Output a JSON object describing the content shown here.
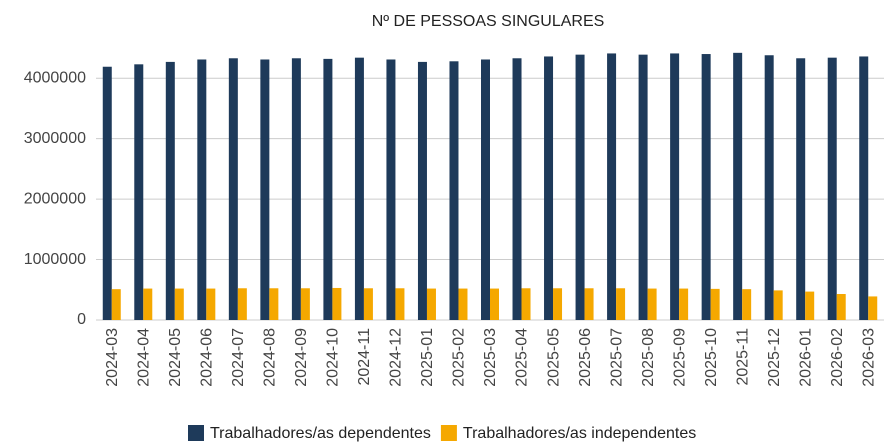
{
  "chart_data": {
    "type": "bar",
    "title": "Nº DE PESSOAS SINGULARES",
    "categories": [
      "2024-03",
      "2024-04",
      "2024-05",
      "2024-06",
      "2024-07",
      "2024-08",
      "2024-09",
      "2024-10",
      "2024-11",
      "2024-12",
      "2025-01",
      "2025-02",
      "2025-03",
      "2025-04",
      "2025-05",
      "2025-06",
      "2025-07",
      "2025-08",
      "2025-09",
      "2025-10",
      "2025-11",
      "2025-12",
      "2026-01",
      "2026-02",
      "2026-03"
    ],
    "series": [
      {
        "name": "Trabalhadores/as dependentes",
        "color": "#1e3a5a",
        "values": [
          4190000,
          4230000,
          4270000,
          4310000,
          4330000,
          4310000,
          4330000,
          4320000,
          4340000,
          4310000,
          4270000,
          4280000,
          4310000,
          4330000,
          4360000,
          4390000,
          4410000,
          4390000,
          4410000,
          4400000,
          4420000,
          4380000,
          4330000,
          4340000,
          4360000
        ]
      },
      {
        "name": "Trabalhadores/as independentes",
        "color": "#f5a800",
        "values": [
          510000,
          520000,
          520000,
          520000,
          525000,
          525000,
          525000,
          530000,
          525000,
          525000,
          520000,
          520000,
          520000,
          525000,
          525000,
          525000,
          525000,
          520000,
          520000,
          515000,
          510000,
          490000,
          470000,
          430000,
          390000
        ]
      }
    ],
    "ylim": [
      0,
      4500000
    ],
    "yticks": [
      0,
      1000000,
      2000000,
      3000000,
      4000000
    ],
    "grid": true,
    "legend": "bottom"
  }
}
